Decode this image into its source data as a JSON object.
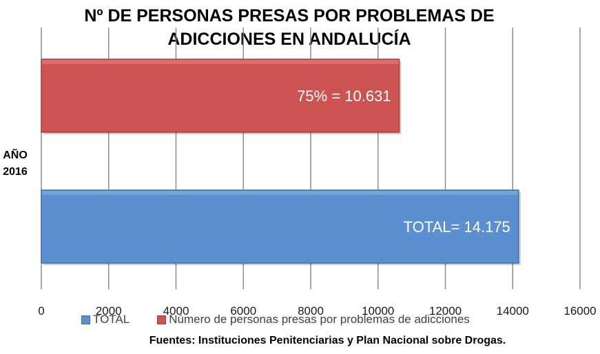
{
  "chart_data": {
    "type": "bar",
    "orientation": "horizontal",
    "title_lines": [
      "Nº DE PERSONAS PRESAS POR PROBLEMAS DE",
      "ADICCIONES EN ANDALUCÍA"
    ],
    "category_label_lines": [
      "AÑO",
      "2016"
    ],
    "series": [
      {
        "name": "TOTAL",
        "value": 14175,
        "label": "TOTAL= 14.175",
        "color": "#5b8fcf"
      },
      {
        "name": "Número de personas presas por problemas de adicciones",
        "value": 10631,
        "label": "75% = 10.631",
        "color": "#cd5353"
      }
    ],
    "xlim": [
      0,
      16000
    ],
    "xticks": [
      0,
      2000,
      4000,
      6000,
      8000,
      10000,
      12000,
      14000,
      16000
    ],
    "grid": "vertical",
    "legend_position": "bottom"
  },
  "source_note": "Fuentes: Instituciones Penitenciarias y Plan Nacional sobre Drogas."
}
